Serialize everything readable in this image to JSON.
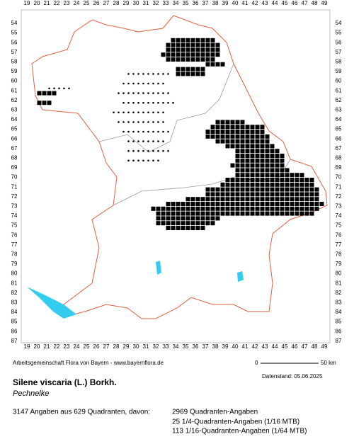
{
  "map": {
    "columns": [
      19,
      20,
      21,
      22,
      23,
      24,
      25,
      26,
      27,
      28,
      29,
      30,
      31,
      32,
      33,
      34,
      35,
      36,
      37,
      38,
      39,
      40,
      41,
      42,
      43,
      44,
      45,
      46,
      47,
      48,
      49
    ],
    "rows": [
      54,
      55,
      56,
      57,
      58,
      59,
      60,
      61,
      62,
      63,
      64,
      65,
      66,
      67,
      68,
      69,
      70,
      71,
      72,
      73,
      74,
      75,
      76,
      77,
      78,
      79,
      80,
      81,
      82,
      83,
      84,
      85,
      86,
      87
    ],
    "occurrences": [
      {
        "row": 55.75,
        "x": [
          33.75,
          37.75
        ],
        "kind": "square"
      },
      {
        "row": 56.25,
        "x": [
          33.25,
          38.25
        ],
        "kind": "square"
      },
      {
        "row": 56.75,
        "x": [
          33.25,
          38.25
        ],
        "kind": "square"
      },
      {
        "row": 57.25,
        "x": [
          32.75,
          38.25
        ],
        "kind": "square"
      },
      {
        "row": 57.75,
        "x": [
          33.25,
          37.75
        ],
        "kind": "square"
      },
      {
        "row": 58.25,
        "x": [
          37.25,
          38.75
        ],
        "kind": "square"
      },
      {
        "row": 58.75,
        "x": [
          34.25,
          36.75
        ],
        "kind": "square"
      },
      {
        "row": 59.25,
        "x": [
          34.25,
          36.75
        ],
        "kind": "square"
      },
      {
        "row": 61.25,
        "x": [
          20.25,
          21.75
        ],
        "kind": "square"
      },
      {
        "row": 62.25,
        "x": [
          20.25,
          21.25
        ],
        "kind": "square"
      },
      {
        "row": 64.25,
        "x": [
          38.25,
          40.75
        ],
        "kind": "square"
      },
      {
        "row": 64.75,
        "x": [
          37.75,
          42.75
        ],
        "kind": "square"
      },
      {
        "row": 65.25,
        "x": [
          37.25,
          42.75
        ],
        "kind": "square"
      },
      {
        "row": 65.75,
        "x": [
          37.25,
          43.25
        ],
        "kind": "square"
      },
      {
        "row": 66.25,
        "x": [
          38.25,
          43.25
        ],
        "kind": "square"
      },
      {
        "row": 66.75,
        "x": [
          39.25,
          43.75
        ],
        "kind": "square"
      },
      {
        "row": 67.25,
        "x": [
          40.25,
          44.25
        ],
        "kind": "square"
      },
      {
        "row": 67.75,
        "x": [
          40.25,
          44.75
        ],
        "kind": "square"
      },
      {
        "row": 68.25,
        "x": [
          40.25,
          44.75
        ],
        "kind": "square"
      },
      {
        "row": 68.75,
        "x": [
          39.75,
          44.75
        ],
        "kind": "square"
      },
      {
        "row": 69.25,
        "x": [
          40.25,
          45.25
        ],
        "kind": "square"
      },
      {
        "row": 69.75,
        "x": [
          40.25,
          46.75
        ],
        "kind": "square"
      },
      {
        "row": 70.25,
        "x": [
          39.25,
          47.75
        ],
        "kind": "square"
      },
      {
        "row": 70.75,
        "x": [
          38.75,
          47.75
        ],
        "kind": "square"
      },
      {
        "row": 71.25,
        "x": [
          37.25,
          48.25
        ],
        "kind": "square"
      },
      {
        "row": 71.75,
        "x": [
          37.25,
          48.25
        ],
        "kind": "square"
      },
      {
        "row": 72.25,
        "x": [
          35.25,
          48.25
        ],
        "kind": "square"
      },
      {
        "row": 72.75,
        "x": [
          33.25,
          48.75
        ],
        "kind": "square"
      },
      {
        "row": 73.25,
        "x": [
          31.75,
          48.25
        ],
        "kind": "square"
      },
      {
        "row": 73.75,
        "x": [
          32.25,
          47.75
        ],
        "kind": "square"
      },
      {
        "row": 74.25,
        "x": [
          32.25,
          38.25
        ],
        "kind": "square"
      },
      {
        "row": 74.75,
        "x": [
          32.25,
          37.75
        ],
        "kind": "square"
      },
      {
        "row": 75.25,
        "x": [
          33.25,
          36.75
        ],
        "kind": "square"
      },
      {
        "row": 59.25,
        "x": [
          29.25,
          33.25
        ],
        "kind": "dot"
      },
      {
        "row": 60.25,
        "x": [
          28.75,
          32.75
        ],
        "kind": "dot"
      },
      {
        "row": 60.75,
        "x": [
          21.25,
          23.25
        ],
        "kind": "dot"
      },
      {
        "row": 61.25,
        "x": [
          28.25,
          33.25
        ],
        "kind": "dot"
      },
      {
        "row": 62.25,
        "x": [
          28.75,
          33.75
        ],
        "kind": "dot"
      },
      {
        "row": 63.25,
        "x": [
          27.75,
          32.75
        ],
        "kind": "dot"
      },
      {
        "row": 64.25,
        "x": [
          28.25,
          32.75
        ],
        "kind": "dot"
      },
      {
        "row": 65.25,
        "x": [
          28.75,
          33.25
        ],
        "kind": "dot"
      },
      {
        "row": 66.25,
        "x": [
          29.25,
          32.75
        ],
        "kind": "dot"
      },
      {
        "row": 67.25,
        "x": [
          29.25,
          33.25
        ],
        "kind": "dot"
      },
      {
        "row": 68.25,
        "x": [
          29.25,
          32.25
        ],
        "kind": "dot"
      }
    ]
  },
  "footer": {
    "credit": "Arbeitsgemeinschaft Flora von Bayern - www.bayernflora.de",
    "scale_start": "0",
    "scale_end": "50 km",
    "date": "Datenstand: 05.06.2025"
  },
  "species": {
    "name": "Silene viscaria (L.) Borkh.",
    "common_name": "Pechnelke"
  },
  "stats": {
    "summary": "3147 Angaben aus 629 Quadranten, davon:",
    "lines": [
      "2969 Quadranten-Angaben",
      "25 1/4-Quadranten-Angaben (1/16 MTB)",
      "113 1/16-Quadranten-Angaben (1/64 MTB)"
    ]
  }
}
